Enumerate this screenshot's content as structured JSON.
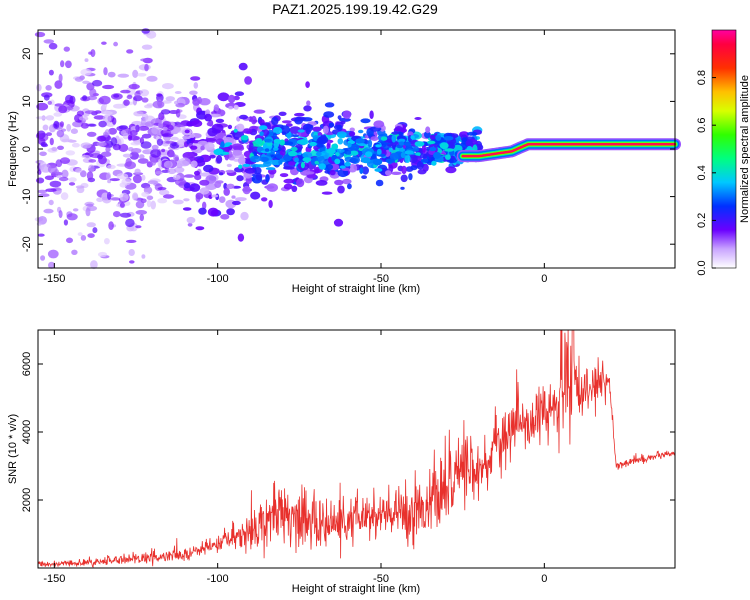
{
  "title": "PAZ1.2025.199.19.42.G29",
  "colors": {
    "snr_line": "#e8302c",
    "frame": "#000000",
    "background": "#ffffff"
  },
  "chart_data": [
    {
      "type": "heatmap",
      "xlabel": "Height of straight line (km)",
      "ylabel": "Frequency (Hz)",
      "xlim": [
        -155,
        40
      ],
      "ylim": [
        -25,
        25
      ],
      "xticks": [
        -150,
        -100,
        -50,
        0
      ],
      "yticks": [
        -20,
        -10,
        0,
        10,
        20
      ],
      "colorbar": {
        "label": "Normalized spectral amplitude",
        "range": [
          0,
          1
        ],
        "ticks": [
          0.0,
          0.2,
          0.4,
          0.6,
          0.8
        ],
        "tick_labels": [
          "0.0",
          "0.2",
          "0.4",
          "0.6",
          "0.8"
        ]
      },
      "grid": false,
      "description_points": {
        "ridge_height_km": [
          -25,
          -20,
          -15,
          -10,
          -5,
          0,
          10,
          20,
          30,
          40
        ],
        "ridge_frequency_hz": [
          -1.5,
          -1.5,
          -1.0,
          -0.5,
          1.0,
          1.0,
          1.0,
          1.0,
          1.0,
          1.0
        ],
        "ridge_amplitude": [
          0.4,
          0.7,
          0.8,
          0.8,
          0.9,
          1.0,
          1.0,
          1.0,
          1.0,
          1.0
        ]
      }
    },
    {
      "type": "line",
      "xlabel": "Height of straight line (km)",
      "ylabel": "SNR (10 * v/v)",
      "xlim": [
        -155,
        40
      ],
      "ylim": [
        0,
        7000
      ],
      "xticks": [
        -150,
        -100,
        -50,
        0
      ],
      "yticks": [
        2000,
        4000,
        6000
      ],
      "grid": false,
      "legend": "none",
      "envelope": {
        "x": [
          -155,
          -140,
          -130,
          -120,
          -110,
          -100,
          -95,
          -90,
          -85,
          -80,
          -75,
          -70,
          -65,
          -60,
          -55,
          -50,
          -45,
          -40,
          -35,
          -30,
          -27,
          -25,
          -22,
          -20,
          -18,
          -15,
          -12,
          -10,
          -8,
          -5,
          -2,
          0,
          3,
          6,
          8,
          10,
          13,
          16,
          20,
          22,
          25,
          30,
          35,
          40
        ],
        "y": [
          100,
          150,
          250,
          300,
          380,
          700,
          900,
          1100,
          1500,
          1700,
          1400,
          1300,
          1300,
          1300,
          1500,
          1500,
          1600,
          1700,
          1900,
          2300,
          2500,
          3200,
          2800,
          3000,
          3000,
          3700,
          3700,
          4000,
          4400,
          4200,
          4500,
          4500,
          4700,
          5000,
          5000,
          5300,
          5300,
          5400,
          5500,
          3000,
          3100,
          3200,
          3300,
          3350
        ]
      },
      "noise_scale": {
        "x": [
          -155,
          -100,
          -85,
          -60,
          -40,
          -30,
          -20,
          -10,
          0,
          8,
          20,
          22,
          40
        ],
        "y": [
          60,
          180,
          700,
          600,
          700,
          900,
          800,
          700,
          700,
          900,
          400,
          120,
          80
        ]
      }
    }
  ]
}
